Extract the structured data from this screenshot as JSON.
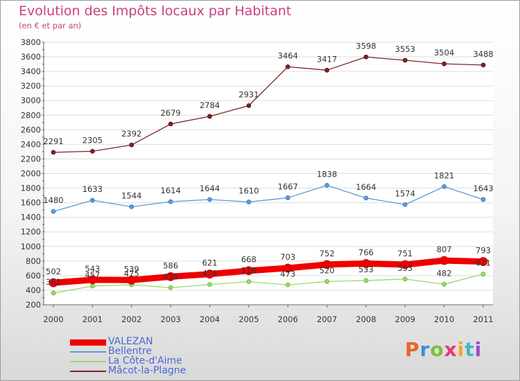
{
  "header": {
    "title": "Evolution des Impôts locaux par Habitant",
    "subtitle": "(en € et par an)"
  },
  "logo": {
    "text": "Proxiti",
    "colors": [
      "#e8622c",
      "#3d8ed8",
      "#7cbf3a",
      "#e83a7c",
      "#f2a823",
      "#3db8c7",
      "#9a4fc8"
    ]
  },
  "chart_data": {
    "type": "line",
    "title": "Evolution des Impôts locaux par Habitant",
    "subtitle": "(en € et par an)",
    "x": [
      "2000",
      "2001",
      "2002",
      "2003",
      "2004",
      "2005",
      "2006",
      "2007",
      "2008",
      "2009",
      "2010",
      "2011"
    ],
    "ylim": [
      200,
      3800
    ],
    "yticks": [
      200,
      400,
      600,
      800,
      1000,
      1200,
      1400,
      1600,
      1800,
      2000,
      2200,
      2400,
      2600,
      2800,
      3000,
      3200,
      3400,
      3600,
      3800
    ],
    "grid": true,
    "legend_position": "bottom-left",
    "series": [
      {
        "name": "VALEZAN",
        "color": "#ee0000",
        "width": "thick",
        "values": [
          502,
          543,
          539,
          586,
          621,
          668,
          703,
          752,
          766,
          751,
          807,
          793
        ]
      },
      {
        "name": "Bellentre",
        "color": "#5b9bd5",
        "values": [
          1480,
          1633,
          1544,
          1614,
          1644,
          1610,
          1667,
          1838,
          1664,
          1574,
          1821,
          1643
        ]
      },
      {
        "name": "La Côte-d'Aime",
        "color": "#99d96b",
        "values": [
          361,
          457,
          475,
          435,
          478,
          518,
          473,
          520,
          533,
          553,
          482,
          621
        ]
      },
      {
        "name": "Mâcot-la-Plagne",
        "color": "#7a2428",
        "values": [
          2291,
          2305,
          2392,
          2679,
          2784,
          2931,
          3464,
          3417,
          3598,
          3553,
          3504,
          3488
        ]
      }
    ]
  }
}
